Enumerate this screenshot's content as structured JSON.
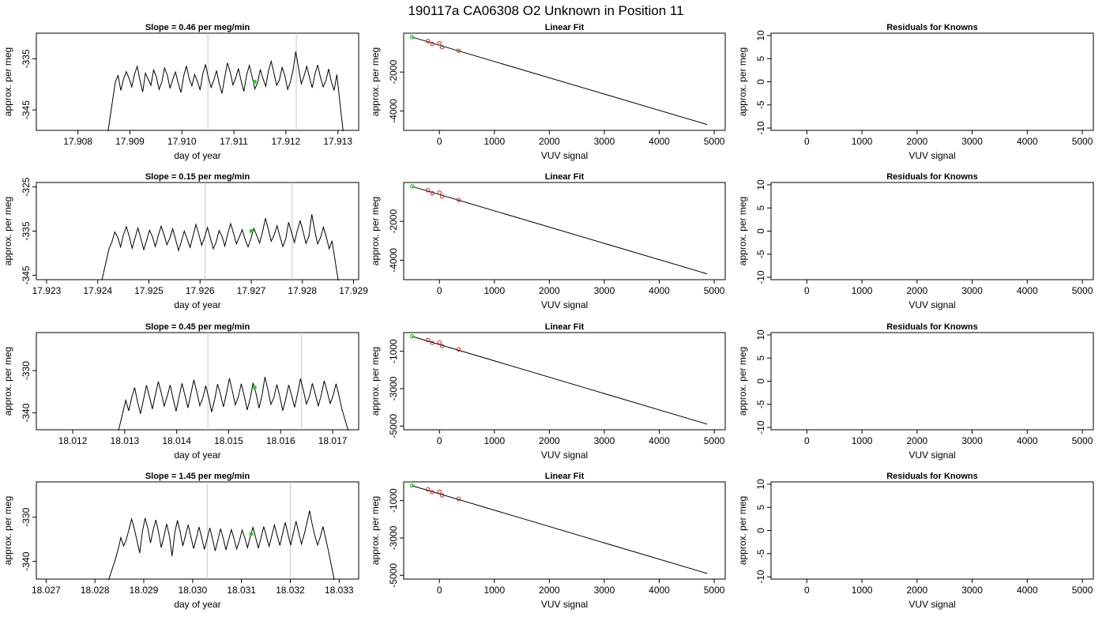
{
  "title": "190117a      CA06308    O2 Unknown in Position  11",
  "colors": {
    "series": "#000000",
    "marker_green": "#22cc22",
    "marker_red": "#cc2222",
    "guide": "#c8c8c8",
    "frame": "#000000"
  },
  "chart_data": [
    {
      "type": "line",
      "row": 1,
      "title": "Slope =  0.46  per meg/min",
      "xlabel": "day of year",
      "ylabel": "approx. per meg",
      "xticks": [
        "17.908",
        "17.909",
        "17.910",
        "17.911",
        "17.912",
        "17.913"
      ],
      "yticks": [
        "-335",
        "-345"
      ],
      "xlim": [
        17.9072,
        17.9134
      ],
      "ylim": [
        -349,
        -330
      ],
      "x_start": 17.9086,
      "x_end": 17.9131,
      "vlines": [
        17.9105,
        17.9122
      ],
      "green_point": {
        "x": 17.9114,
        "y": -339.5
      },
      "trace": [
        -339.5,
        -338.3,
        -341.2,
        -339,
        -337.5,
        -338.8,
        -340.5,
        -338,
        -336.5,
        -339.2,
        -341.5,
        -337.8,
        -339,
        -340.2,
        -337.2,
        -338.5,
        -341,
        -339.5,
        -336.8,
        -338.2,
        -340.8,
        -339,
        -337.6,
        -339.8,
        -341.6,
        -338.4,
        -336.4,
        -338.9,
        -340.3,
        -338.1,
        -339.4,
        -341.1,
        -337.9,
        -336.1,
        -338.7,
        -340.6,
        -339.2,
        -337.3,
        -339.9,
        -341.8,
        -338.6,
        -335.8,
        -337.6,
        -340.1,
        -338.8,
        -336.9,
        -339.3,
        -341.4,
        -338.2,
        -336.3,
        -338.5,
        -340.9,
        -339.7,
        -337.1,
        -338.9,
        -340.4,
        -337.4,
        -335.5,
        -337.8,
        -340.2,
        -339.1,
        -336.7,
        -338.3,
        -341,
        -339.6,
        -337.2,
        -333.6,
        -336.8,
        -339.9,
        -338.4,
        -336.5,
        -338.7,
        -340.7,
        -338,
        -336.2,
        -338.6,
        -340.5,
        -339.3,
        -337,
        -339.5,
        -341.2,
        -338.1
      ]
    },
    {
      "type": "line",
      "row": 2,
      "title": "Slope =  0.15  per meg/min",
      "xlabel": "day of year",
      "ylabel": "approx. per meg",
      "xticks": [
        "17.923",
        "17.924",
        "17.925",
        "17.926",
        "17.927",
        "17.928",
        "17.929"
      ],
      "yticks": [
        "-325",
        "-335",
        "-345"
      ],
      "xlim": [
        17.9228,
        17.9291
      ],
      "ylim": [
        -346,
        -324
      ],
      "x_start": 17.9241,
      "x_end": 17.9287,
      "vlines": [
        17.9261,
        17.9278
      ],
      "green_point": {
        "x": 17.927,
        "y": -335
      },
      "trace": [
        -339,
        -337.5,
        -335.2,
        -336.4,
        -338.6,
        -335.8,
        -334,
        -336.2,
        -338.9,
        -336.5,
        -334.3,
        -336.7,
        -339.2,
        -337.1,
        -334.8,
        -336.3,
        -338.5,
        -336,
        -333.9,
        -335.8,
        -338.1,
        -336.6,
        -334.5,
        -336.9,
        -339.4,
        -337.3,
        -335,
        -336.8,
        -338.7,
        -336.1,
        -333.5,
        -335.7,
        -338.2,
        -336.4,
        -334.2,
        -336.6,
        -339,
        -337.5,
        -334.9,
        -336.2,
        -338.4,
        -335.6,
        -333.3,
        -335.5,
        -337.9,
        -336.3,
        -334.7,
        -336.9,
        -338.6,
        -336.7,
        -334.4,
        -336,
        -337.7,
        -335.2,
        -332.1,
        -334.6,
        -337.3,
        -335.9,
        -333.8,
        -336.2,
        -338.5,
        -336.8,
        -333,
        -335.3,
        -337.6,
        -334.9,
        -332.7,
        -335.1,
        -337.8,
        -336.2,
        -331.2,
        -334.8,
        -337.9,
        -336.5,
        -334.1,
        -336.3,
        -339,
        -337.2
      ]
    },
    {
      "type": "line",
      "row": 3,
      "title": "Slope =  0.45  per meg/min",
      "xlabel": "day of year",
      "ylabel": "approx. per meg",
      "xticks": [
        "18.012",
        "18.013",
        "18.014",
        "18.015",
        "18.016",
        "18.017"
      ],
      "yticks": [
        "-330",
        "-340"
      ],
      "xlim": [
        18.0113,
        18.0175
      ],
      "ylim": [
        -344,
        -321
      ],
      "x_start": 18.0129,
      "x_end": 18.0173,
      "vlines": [
        18.0146,
        18.0164
      ],
      "green_point": {
        "x": 18.0155,
        "y": -334
      },
      "trace": [
        -337,
        -339.5,
        -336.4,
        -334,
        -337.5,
        -340.2,
        -336.8,
        -333.5,
        -336.2,
        -339.1,
        -335.7,
        -332.6,
        -335.3,
        -338.4,
        -336,
        -333.4,
        -336.7,
        -339.6,
        -336.2,
        -333,
        -335.9,
        -338.8,
        -335.4,
        -332.2,
        -335.1,
        -338.3,
        -336.5,
        -333.6,
        -336.4,
        -339.8,
        -336.9,
        -333.2,
        -335.7,
        -338.6,
        -335.3,
        -331.8,
        -334.9,
        -338.1,
        -336.2,
        -333.1,
        -336,
        -339.3,
        -336.6,
        -332.9,
        -335.5,
        -338.9,
        -335.8,
        -331.5,
        -334.6,
        -338,
        -336.4,
        -333.3,
        -336.1,
        -339.5,
        -336.7,
        -333.4,
        -335.9,
        -338.7,
        -335.4,
        -331.9,
        -334.8,
        -337.9,
        -336.1,
        -333,
        -335.6,
        -338.4,
        -335.7,
        -332.4,
        -335,
        -337.8,
        -335.9,
        -333.1,
        -336,
        -339.2
      ]
    },
    {
      "type": "line",
      "row": 4,
      "title": "Slope =  1.45  per meg/min",
      "xlabel": "day of year",
      "ylabel": "approx. per meg",
      "xticks": [
        "18.027",
        "18.028",
        "18.029",
        "18.030",
        "18.031",
        "18.032",
        "18.033"
      ],
      "yticks": [
        "-330",
        "-340"
      ],
      "xlim": [
        18.0268,
        18.0334
      ],
      "ylim": [
        -344,
        -322
      ],
      "x_start": 18.0283,
      "x_end": 18.0329,
      "vlines": [
        18.0303,
        18.032
      ],
      "green_point": {
        "x": 18.0312,
        "y": -333.8
      },
      "trace": [
        -339.5,
        -337.2,
        -334.6,
        -336.5,
        -335.1,
        -332.8,
        -330.4,
        -332.6,
        -335.3,
        -338.1,
        -333.2,
        -330.2,
        -332.5,
        -335.8,
        -332.9,
        -330.6,
        -333.4,
        -336.9,
        -334.3,
        -331.5,
        -334.2,
        -338.8,
        -333.6,
        -330.7,
        -333.3,
        -336.5,
        -334,
        -331.7,
        -334.5,
        -337.1,
        -334.8,
        -332.2,
        -334.6,
        -337.3,
        -335,
        -332.4,
        -334.9,
        -337.6,
        -335.2,
        -332.6,
        -334.8,
        -337.4,
        -335.1,
        -332.8,
        -334.9,
        -337.2,
        -335.3,
        -332.9,
        -334.7,
        -336.9,
        -334.5,
        -332.3,
        -334.6,
        -337,
        -334.7,
        -332.1,
        -334.3,
        -336.6,
        -334.2,
        -331.8,
        -334.1,
        -336.4,
        -333.7,
        -331.2,
        -333.8,
        -336.3,
        -333.6,
        -330.9,
        -333.5,
        -336.1,
        -333.9,
        -331.4,
        -328.5,
        -331.6,
        -334.2,
        -336.3,
        -334.5,
        -332.1,
        -334.8,
        -337.6
      ]
    },
    {
      "type": "scatter",
      "title": "Linear Fit",
      "xlabel": "VUV signal",
      "ylabel": "approx. per meg",
      "xticks": [
        "0",
        "1000",
        "2000",
        "3000",
        "4000",
        "5000"
      ],
      "yticks_by_row": [
        [
          "-2000",
          "-4000"
        ],
        [
          "-2000",
          "-4000"
        ],
        [
          "-1000",
          "-3000",
          "-5000"
        ],
        [
          "-1000",
          "-3000",
          "-5000"
        ]
      ],
      "xlim": [
        -650,
        5200
      ],
      "ylim_by_row": [
        [
          -5000,
          0
        ],
        [
          -5000,
          0
        ],
        [
          -5200,
          0
        ],
        [
          -5200,
          0
        ]
      ],
      "fit_line": {
        "x": [
          -500,
          4870
        ],
        "y": [
          -200,
          -4700
        ]
      },
      "fit_line_rows34": {
        "x": [
          -500,
          4870
        ],
        "y": [
          -200,
          -4900
        ]
      },
      "green_point": {
        "x": -500,
        "y": -200
      },
      "red_points": {
        "x": [
          -210,
          -130,
          0,
          50,
          350
        ],
        "y": [
          -400,
          -550,
          -520,
          -720,
          -900
        ]
      }
    },
    {
      "type": "scatter",
      "title": "Residuals for Knowns",
      "xlabel": "VUV signal",
      "ylabel": "approx. per meg",
      "xticks": [
        "0",
        "1000",
        "2000",
        "3000",
        "4000",
        "5000"
      ],
      "yticks": [
        "10",
        "5",
        "0",
        "-5",
        "-10"
      ],
      "xlim": [
        -650,
        5200
      ],
      "ylim": [
        -10.5,
        10.5
      ],
      "points": []
    }
  ]
}
